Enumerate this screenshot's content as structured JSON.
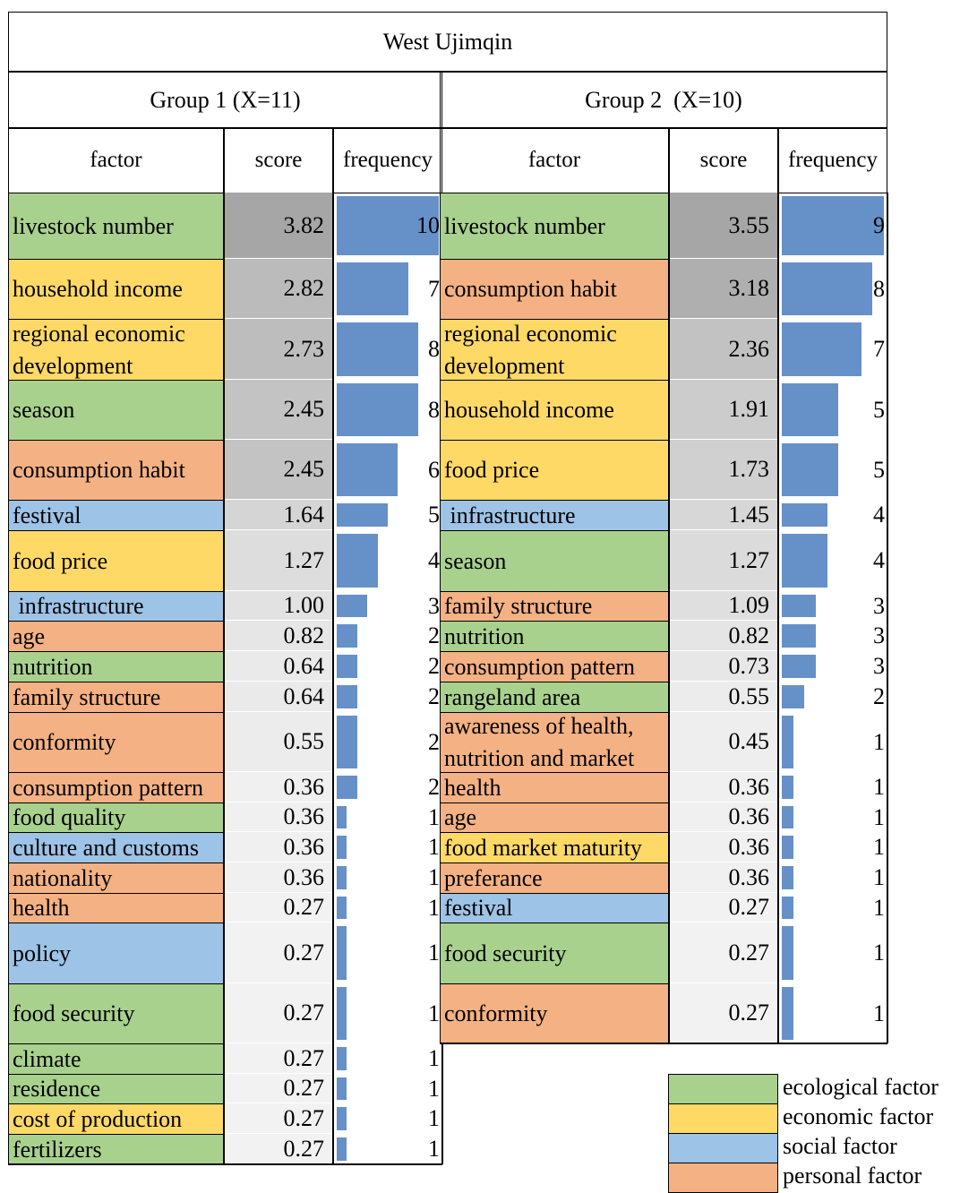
{
  "title": "West Ujimqin",
  "groups": [
    {
      "title": "Group 1 (X=11)",
      "columns": [
        "factor",
        "score",
        "frequency"
      ],
      "rows": [
        {
          "factor": "livestock number",
          "score": "3.82",
          "frequency": 10,
          "category": 0
        },
        {
          "factor": "household income",
          "score": "2.82",
          "frequency": 7,
          "category": 1
        },
        {
          "factor": "regional economic development",
          "score": "2.73",
          "frequency": 8,
          "category": 1
        },
        {
          "factor": "season",
          "score": "2.45",
          "frequency": 8,
          "category": 0
        },
        {
          "factor": "consumption habit",
          "score": "2.45",
          "frequency": 6,
          "category": 3
        },
        {
          "factor": "festival",
          "score": "1.64",
          "frequency": 5,
          "category": 2
        },
        {
          "factor": "food price",
          "score": "1.27",
          "frequency": 4,
          "category": 1
        },
        {
          "factor": " infrastructure",
          "score": "1.00",
          "frequency": 3,
          "category": 2
        },
        {
          "factor": "age",
          "score": "0.82",
          "frequency": 2,
          "category": 3
        },
        {
          "factor": "nutrition",
          "score": "0.64",
          "frequency": 2,
          "category": 0
        },
        {
          "factor": "family structure",
          "score": "0.64",
          "frequency": 2,
          "category": 3
        },
        {
          "factor": "conformity",
          "score": "0.55",
          "frequency": 2,
          "category": 3
        },
        {
          "factor": "consumption pattern",
          "score": "0.36",
          "frequency": 2,
          "category": 3
        },
        {
          "factor": "food quality",
          "score": "0.36",
          "frequency": 1,
          "category": 0
        },
        {
          "factor": "culture and customs",
          "score": "0.36",
          "frequency": 1,
          "category": 2
        },
        {
          "factor": "nationality",
          "score": "0.36",
          "frequency": 1,
          "category": 3
        },
        {
          "factor": "health",
          "score": "0.27",
          "frequency": 1,
          "category": 3
        },
        {
          "factor": "policy",
          "score": "0.27",
          "frequency": 1,
          "category": 2
        },
        {
          "factor": "food security",
          "score": "0.27",
          "frequency": 1,
          "category": 0
        },
        {
          "factor": "climate",
          "score": "0.27",
          "frequency": 1,
          "category": 0
        },
        {
          "factor": "residence",
          "score": "0.27",
          "frequency": 1,
          "category": 0
        },
        {
          "factor": "cost of production",
          "score": "0.27",
          "frequency": 1,
          "category": 1
        },
        {
          "factor": "fertilizers",
          "score": "0.27",
          "frequency": 1,
          "category": 0
        }
      ]
    },
    {
      "title": "Group 2  (X=10)",
      "columns": [
        "factor",
        "score",
        "frequency"
      ],
      "rows": [
        {
          "factor": "livestock number",
          "score": "3.55",
          "frequency": 9,
          "category": 0
        },
        {
          "factor": "consumption habit",
          "score": "3.18",
          "frequency": 8,
          "category": 3
        },
        {
          "factor": "regional economic development",
          "score": "2.36",
          "frequency": 7,
          "category": 1
        },
        {
          "factor": "household income",
          "score": "1.91",
          "frequency": 5,
          "category": 1
        },
        {
          "factor": "food price",
          "score": "1.73",
          "frequency": 5,
          "category": 1
        },
        {
          "factor": " infrastructure",
          "score": "1.45",
          "frequency": 4,
          "category": 2
        },
        {
          "factor": "season",
          "score": "1.27",
          "frequency": 4,
          "category": 0
        },
        {
          "factor": "family structure",
          "score": "1.09",
          "frequency": 3,
          "category": 3
        },
        {
          "factor": "nutrition",
          "score": "0.82",
          "frequency": 3,
          "category": 0
        },
        {
          "factor": "consumption pattern",
          "score": "0.73",
          "frequency": 3,
          "category": 3
        },
        {
          "factor": "rangeland area",
          "score": "0.55",
          "frequency": 2,
          "category": 0
        },
        {
          "factor": "awareness of health, nutrition and market",
          "score": "0.45",
          "frequency": 1,
          "category": 3
        },
        {
          "factor": "health",
          "score": "0.36",
          "frequency": 1,
          "category": 3
        },
        {
          "factor": "age",
          "score": "0.36",
          "frequency": 1,
          "category": 3
        },
        {
          "factor": "food market maturity",
          "score": "0.36",
          "frequency": 1,
          "category": 1
        },
        {
          "factor": "preferance",
          "score": "0.36",
          "frequency": 1,
          "category": 3
        },
        {
          "factor": "festival",
          "score": "0.27",
          "frequency": 1,
          "category": 2
        },
        {
          "factor": "food security",
          "score": "0.27",
          "frequency": 1,
          "category": 0
        },
        {
          "factor": "conformity",
          "score": "0.27",
          "frequency": 1,
          "category": 3
        }
      ]
    }
  ],
  "legend": [
    {
      "label": "ecological factor",
      "color": "#a9d18e"
    },
    {
      "label": "economic factor",
      "color": "#ffd966"
    },
    {
      "label": "social factor",
      "color": "#9dc3e6"
    },
    {
      "label": "personal factor",
      "color": "#f4b183"
    }
  ]
}
